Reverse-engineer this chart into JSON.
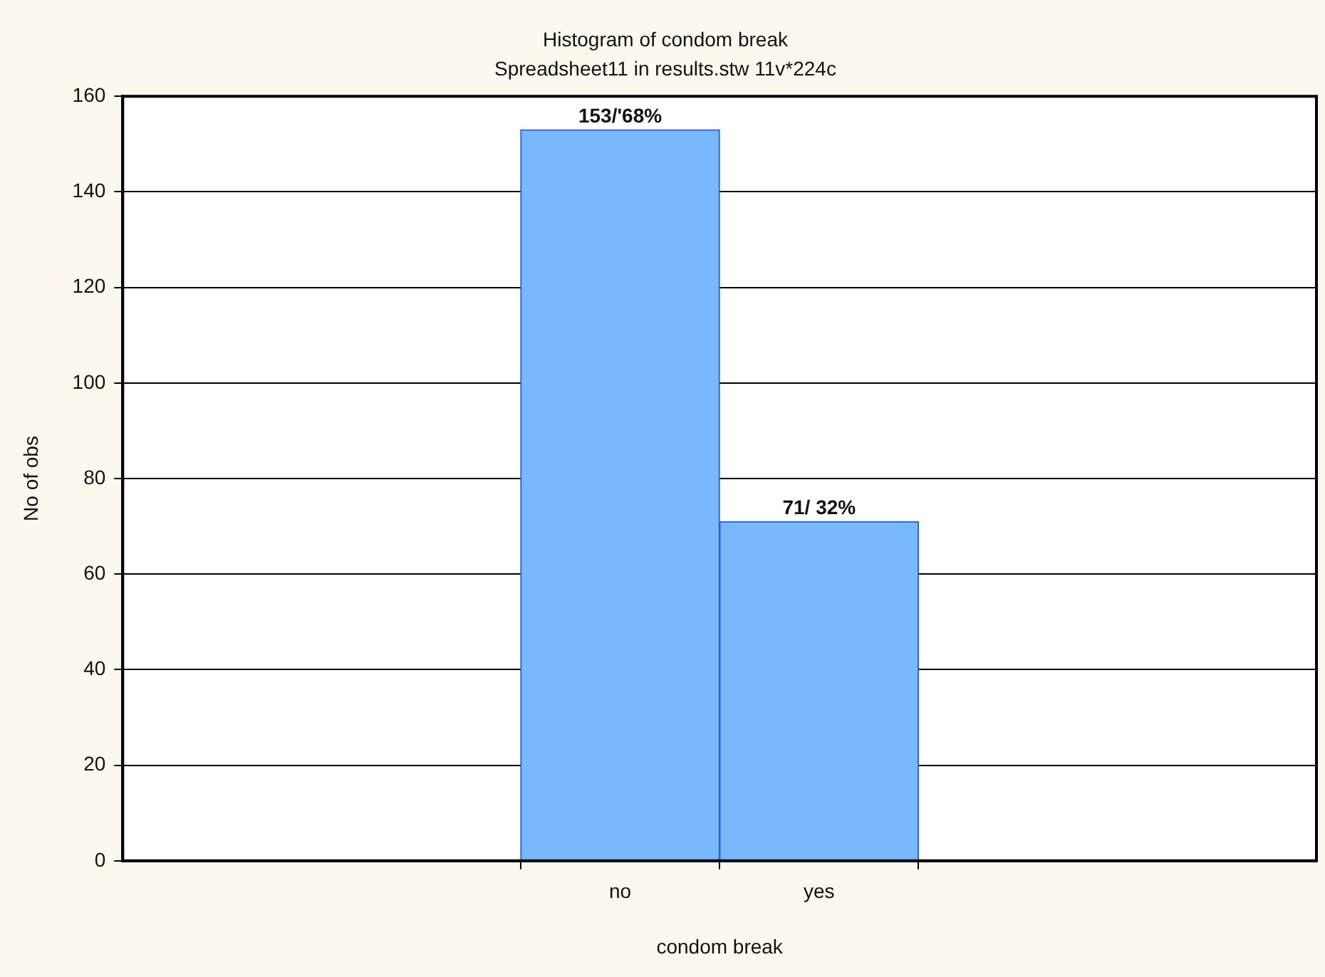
{
  "chart_data": {
    "type": "bar",
    "title": "Histogram of condom break",
    "subtitle": "Spreadsheet11 in results.stw 11v*224c",
    "xlabel": "condom break",
    "ylabel": "No of obs",
    "categories": [
      "no",
      "yes"
    ],
    "values": [
      153,
      71
    ],
    "value_labels": [
      "153/'68%",
      "71/ 32%"
    ],
    "color": "#7ab8fd",
    "ylim": [
      0,
      160
    ],
    "yticks": [
      0,
      20,
      40,
      60,
      80,
      100,
      120,
      140,
      160
    ],
    "grid": "y",
    "legend": false
  }
}
